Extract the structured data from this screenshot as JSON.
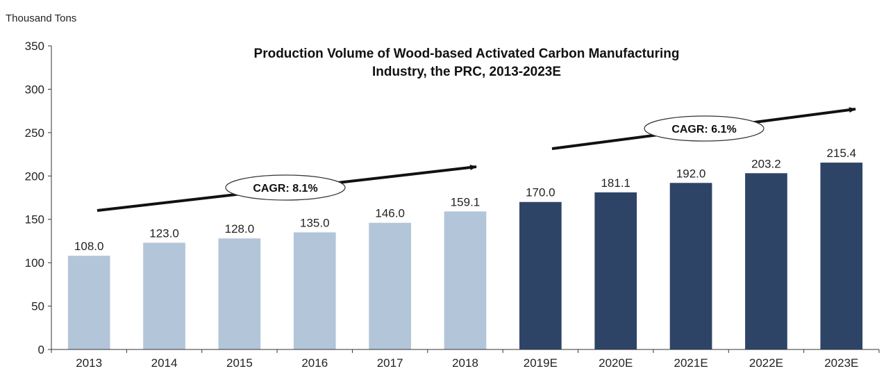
{
  "chart_data": {
    "type": "bar",
    "title": "Production Volume of Wood-based Activated Carbon Manufacturing Industry, the PRC, 2013-2023E",
    "title_lines": [
      "Production Volume of Wood-based Activated Carbon Manufacturing",
      "Industry, the PRC, 2013-2023E"
    ],
    "ylabel": "Thousand Tons",
    "xlabel": "",
    "ylim": [
      0,
      350
    ],
    "yticks": [
      0,
      50,
      100,
      150,
      200,
      250,
      300,
      350
    ],
    "grid": false,
    "categories": [
      "2013",
      "2014",
      "2015",
      "2016",
      "2017",
      "2018",
      "2019E",
      "2020E",
      "2021E",
      "2022E",
      "2023E"
    ],
    "values": [
      108.0,
      123.0,
      128.0,
      135.0,
      146.0,
      159.1,
      170.0,
      181.1,
      192.0,
      203.2,
      215.4
    ],
    "value_labels": [
      "108.0",
      "123.0",
      "128.0",
      "135.0",
      "146.0",
      "159.1",
      "170.0",
      "181.1",
      "192.0",
      "203.2",
      "215.4"
    ],
    "colors": {
      "historical": "#b3c5d8",
      "forecast": "#2e4467"
    },
    "forecast_start_index": 6,
    "annotations": [
      {
        "text": "CAGR: 8.1%",
        "from": "2013",
        "to": "2018"
      },
      {
        "text": "CAGR: 6.1%",
        "from": "2019E",
        "to": "2023E"
      }
    ]
  }
}
